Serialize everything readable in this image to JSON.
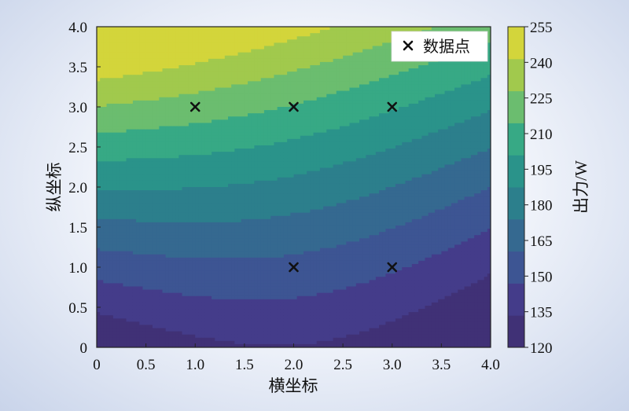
{
  "chart_data": {
    "type": "contourf",
    "xlabel": "横坐标",
    "ylabel": "纵坐标",
    "xlim": [
      0,
      4
    ],
    "ylim": [
      0,
      4
    ],
    "x_ticks": [
      "0",
      "0.5",
      "1.0",
      "1.5",
      "2.0",
      "2.5",
      "3.0",
      "3.5",
      "4.0"
    ],
    "y_ticks": [
      "0",
      "0.5",
      "1.0",
      "1.5",
      "2.0",
      "2.5",
      "3.0",
      "3.5",
      "4.0"
    ],
    "legend": {
      "label": "数据点",
      "marker": "x",
      "position": "top-right"
    },
    "points": [
      {
        "x": 1,
        "y": 3
      },
      {
        "x": 2,
        "y": 3
      },
      {
        "x": 3,
        "y": 3
      },
      {
        "x": 2,
        "y": 1
      },
      {
        "x": 3,
        "y": 1
      }
    ],
    "colorbar": {
      "label": "出力/W",
      "levels": [
        120,
        135,
        150,
        165,
        180,
        195,
        210,
        225,
        240,
        255
      ],
      "tick_labels": [
        "255",
        "240",
        "225",
        "210",
        "195",
        "180",
        "165",
        "150",
        "135",
        "120"
      ],
      "colors": [
        "#403176",
        "#443c8a",
        "#3d5593",
        "#356990",
        "#2c7f8c",
        "#2a938a",
        "#37a985",
        "#6bbd6f",
        "#a1c94d",
        "#d3d53b"
      ]
    }
  }
}
